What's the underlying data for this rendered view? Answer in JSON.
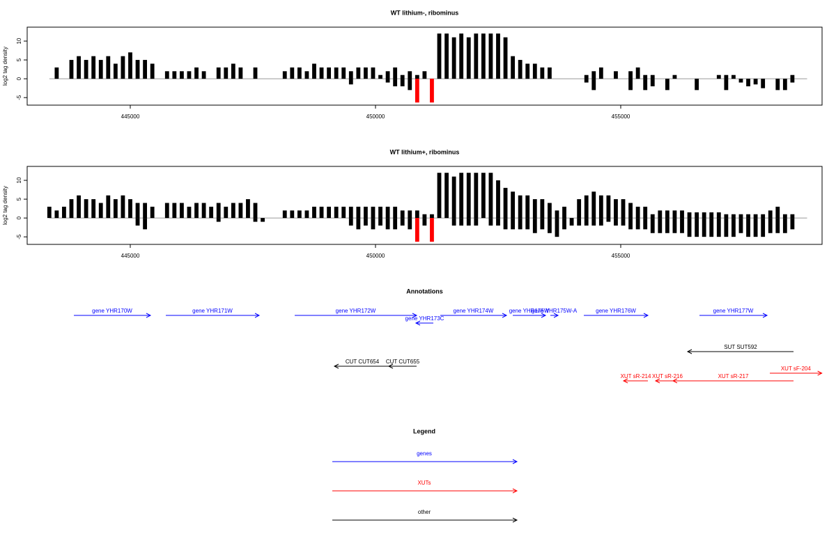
{
  "chart_data": [
    {
      "type": "bar",
      "title": "WT lithium-, ribominus",
      "ylabel": "log2 tag density",
      "xlim": [
        442898,
        459105
      ],
      "xticks": [
        445000,
        450000,
        455000
      ],
      "ylim": [
        -7,
        13.7
      ],
      "yticks": [
        -5,
        0,
        5,
        10
      ],
      "x": [
        443350,
        443500,
        443650,
        443800,
        443950,
        444100,
        444250,
        444400,
        444550,
        444700,
        444850,
        445000,
        445150,
        445300,
        445450,
        445600,
        445750,
        445900,
        446050,
        446200,
        446350,
        446500,
        446650,
        446800,
        446950,
        447100,
        447250,
        447400,
        447550,
        447700,
        447850,
        448000,
        448150,
        448300,
        448450,
        448600,
        448750,
        448900,
        449050,
        449200,
        449350,
        449500,
        449650,
        449800,
        449950,
        450100,
        450250,
        450400,
        450550,
        450700,
        450850,
        451000,
        451150,
        451300,
        451450,
        451600,
        451750,
        451900,
        452050,
        452200,
        452350,
        452500,
        452650,
        452800,
        452950,
        453100,
        453250,
        453400,
        453550,
        453700,
        453850,
        454000,
        454150,
        454300,
        454450,
        454600,
        454750,
        454900,
        455050,
        455200,
        455350,
        455500,
        455650,
        455800,
        455950,
        456100,
        456250,
        456400,
        456550,
        456700,
        456850,
        457000,
        457150,
        457300,
        457450,
        457600,
        457750,
        457900,
        458050,
        458200,
        458350,
        458500,
        458650,
        458800
      ],
      "series": [
        {
          "color": "#000000",
          "values": [
            null,
            3,
            null,
            5,
            6,
            5,
            6,
            5,
            6,
            4,
            6,
            7,
            5,
            5,
            4,
            null,
            2,
            2,
            2,
            2,
            3,
            2,
            null,
            3,
            3,
            4,
            3,
            null,
            3,
            null,
            null,
            null,
            2,
            3,
            3,
            2,
            4,
            3,
            3,
            3,
            3,
            2,
            3,
            3,
            3,
            1,
            2,
            3,
            1,
            2,
            1,
            2,
            null,
            12,
            12,
            11,
            12,
            11,
            12,
            12,
            12,
            12,
            11,
            6,
            5,
            4,
            4,
            3,
            3,
            null,
            null,
            null,
            null,
            1,
            2,
            3,
            null,
            2,
            null,
            2,
            3,
            1,
            1,
            null,
            null,
            1,
            null,
            null,
            null,
            null,
            null,
            1,
            1,
            1,
            null,
            null,
            null,
            null,
            null,
            null,
            null,
            1,
            null,
            null
          ]
        },
        {
          "color": "#000000",
          "values": [
            null,
            null,
            null,
            null,
            null,
            null,
            null,
            null,
            null,
            null,
            null,
            null,
            null,
            null,
            null,
            null,
            null,
            null,
            null,
            null,
            null,
            null,
            null,
            null,
            null,
            null,
            null,
            null,
            null,
            null,
            null,
            null,
            null,
            null,
            null,
            null,
            null,
            null,
            null,
            null,
            null,
            -1.5,
            null,
            null,
            null,
            null,
            -1,
            -2,
            -2,
            -3,
            null,
            null,
            null,
            null,
            null,
            null,
            null,
            null,
            null,
            null,
            null,
            null,
            null,
            null,
            null,
            null,
            null,
            null,
            null,
            null,
            null,
            null,
            null,
            -1,
            -3,
            null,
            null,
            null,
            null,
            -3,
            null,
            -3,
            -2,
            null,
            -3,
            null,
            null,
            null,
            -3,
            null,
            null,
            null,
            -3,
            null,
            -1,
            -2,
            -1.5,
            -2.5,
            null,
            -3,
            -3,
            -1,
            null,
            null
          ]
        },
        {
          "color": "#ff0000",
          "values": [
            null,
            null,
            null,
            null,
            null,
            null,
            null,
            null,
            null,
            null,
            null,
            null,
            null,
            null,
            null,
            null,
            null,
            null,
            null,
            null,
            null,
            null,
            null,
            null,
            null,
            null,
            null,
            null,
            null,
            null,
            null,
            null,
            null,
            null,
            null,
            null,
            null,
            null,
            null,
            null,
            null,
            null,
            null,
            null,
            null,
            null,
            null,
            null,
            null,
            null,
            -6.3,
            null,
            -6.3,
            null,
            null,
            null,
            null,
            null,
            null,
            null,
            null,
            null,
            null,
            null,
            null,
            null,
            null,
            null,
            null,
            null,
            null,
            null,
            null,
            null,
            null,
            null,
            null,
            null,
            null,
            null,
            null,
            null,
            null,
            null,
            null,
            null,
            null,
            null,
            null,
            null,
            null,
            null,
            null,
            null,
            null,
            null,
            null,
            null,
            null,
            null,
            null,
            null,
            null,
            null
          ]
        }
      ]
    },
    {
      "type": "bar",
      "title": "WT lithium+, ribominus",
      "ylabel": "log2 tag density",
      "xlim": [
        442898,
        459105
      ],
      "xticks": [
        445000,
        450000,
        455000
      ],
      "ylim": [
        -7,
        13.7
      ],
      "yticks": [
        -5,
        0,
        5,
        10
      ],
      "x": [
        443350,
        443500,
        443650,
        443800,
        443950,
        444100,
        444250,
        444400,
        444550,
        444700,
        444850,
        445000,
        445150,
        445300,
        445450,
        445600,
        445750,
        445900,
        446050,
        446200,
        446350,
        446500,
        446650,
        446800,
        446950,
        447100,
        447250,
        447400,
        447550,
        447700,
        447850,
        448000,
        448150,
        448300,
        448450,
        448600,
        448750,
        448900,
        449050,
        449200,
        449350,
        449500,
        449650,
        449800,
        449950,
        450100,
        450250,
        450400,
        450550,
        450700,
        450850,
        451000,
        451150,
        451300,
        451450,
        451600,
        451750,
        451900,
        452050,
        452200,
        452350,
        452500,
        452650,
        452800,
        452950,
        453100,
        453250,
        453400,
        453550,
        453700,
        453850,
        454000,
        454150,
        454300,
        454450,
        454600,
        454750,
        454900,
        455050,
        455200,
        455350,
        455500,
        455650,
        455800,
        455950,
        456100,
        456250,
        456400,
        456550,
        456700,
        456850,
        457000,
        457150,
        457300,
        457450,
        457600,
        457750,
        457900,
        458050,
        458200,
        458350,
        458500,
        458650,
        458800
      ],
      "series": [
        {
          "color": "#000000",
          "values": [
            3,
            2,
            3,
            5,
            6,
            5,
            5,
            4,
            6,
            5,
            6,
            5,
            4,
            4,
            3,
            null,
            4,
            4,
            4,
            3,
            4,
            4,
            3,
            4,
            3,
            4,
            4,
            5,
            4,
            null,
            null,
            null,
            2,
            2,
            2,
            2,
            3,
            3,
            3,
            3,
            3,
            3,
            3,
            3,
            3,
            3,
            3,
            3,
            2,
            2,
            2,
            1,
            1,
            12,
            12,
            11,
            12,
            12,
            12,
            12,
            12,
            10,
            8,
            7,
            6,
            6,
            5,
            5,
            4,
            2,
            3,
            null,
            5,
            6,
            7,
            6,
            6,
            5,
            5,
            4,
            3,
            3,
            1,
            2,
            2,
            2,
            2,
            1.5,
            1.5,
            1.5,
            1.5,
            1.5,
            1,
            1,
            1,
            1,
            1,
            1,
            2,
            3,
            1,
            1,
            null,
            null
          ]
        },
        {
          "color": "#000000",
          "values": [
            null,
            null,
            null,
            null,
            null,
            null,
            null,
            null,
            null,
            null,
            null,
            null,
            -2,
            -3,
            null,
            null,
            null,
            null,
            null,
            null,
            null,
            null,
            null,
            -1,
            null,
            null,
            null,
            null,
            -1,
            -1,
            null,
            null,
            null,
            null,
            null,
            null,
            null,
            null,
            null,
            null,
            null,
            -2,
            -3,
            -2,
            -3,
            -2,
            -3,
            -3,
            -2,
            -3,
            null,
            -2,
            null,
            null,
            null,
            -2,
            -2,
            -2,
            -2,
            null,
            -2,
            -2,
            -3,
            -3,
            -3,
            -3,
            -4,
            -3,
            -4,
            -5,
            -3,
            -2,
            -2,
            -2,
            -2,
            -2,
            -1,
            -2,
            -2,
            -3,
            -3,
            -3,
            -4,
            -4,
            -4,
            -4,
            -4,
            -5,
            -5,
            -5,
            -5,
            -5,
            -5,
            -5,
            -4,
            -5,
            -5,
            -5,
            -4,
            -4,
            -4,
            -3,
            null,
            null
          ]
        },
        {
          "color": "#ff0000",
          "values": [
            null,
            null,
            null,
            null,
            null,
            null,
            null,
            null,
            null,
            null,
            null,
            null,
            null,
            null,
            null,
            null,
            null,
            null,
            null,
            null,
            null,
            null,
            null,
            null,
            null,
            null,
            null,
            null,
            null,
            null,
            null,
            null,
            null,
            null,
            null,
            null,
            null,
            null,
            null,
            null,
            null,
            null,
            null,
            null,
            null,
            null,
            null,
            null,
            null,
            null,
            -6.3,
            null,
            -6.3,
            null,
            null,
            null,
            null,
            null,
            null,
            null,
            null,
            null,
            null,
            null,
            null,
            null,
            null,
            null,
            null,
            null,
            null,
            null,
            null,
            null,
            null,
            null,
            null,
            null,
            null,
            null,
            null,
            null,
            null,
            null,
            null,
            null,
            null,
            null,
            null,
            null,
            null,
            null,
            null,
            null,
            null,
            null,
            null,
            null,
            null,
            null,
            null,
            null,
            null,
            null
          ]
        }
      ]
    },
    {
      "type": "annotation",
      "title": "Annotations",
      "xlim": [
        442898,
        459105
      ],
      "features": [
        {
          "label": "gene YHR170W",
          "start": 443850,
          "end": 445412,
          "strand": "+",
          "class": "genes"
        },
        {
          "label": "gene YHR171W",
          "start": 445725,
          "end": 447628,
          "strand": "+",
          "class": "genes"
        },
        {
          "label": "gene YHR172W",
          "start": 448353,
          "end": 450838,
          "strand": "+",
          "class": "genes"
        },
        {
          "label": "gene YHR173C",
          "start": 450824,
          "end": 451179,
          "strand": "-",
          "class": "genes"
        },
        {
          "label": "gene YHR174W",
          "start": 451321,
          "end": 452671,
          "strand": "+",
          "class": "genes"
        },
        {
          "label": "gene YHR175W",
          "start": 452799,
          "end": 453466,
          "strand": "+",
          "class": "genes"
        },
        {
          "label": "gene YHR175W-A",
          "start": 453565,
          "end": 453722,
          "strand": "+",
          "class": "genes"
        },
        {
          "label": "gene YHR176W",
          "start": 454247,
          "end": 455554,
          "strand": "+",
          "class": "genes"
        },
        {
          "label": "gene YHR177W",
          "start": 456605,
          "end": 457983,
          "strand": "+",
          "class": "genes"
        },
        {
          "label": "SUT SUT592",
          "start": 456364,
          "end": 458523,
          "strand": "-",
          "class": "other"
        },
        {
          "label": "CUT CUT654",
          "start": 449162,
          "end": 450299,
          "strand": "-",
          "class": "other"
        },
        {
          "label": "CUT CUT655",
          "start": 450270,
          "end": 450838,
          "strand": "-",
          "class": "other"
        },
        {
          "label": "XUT sR-214",
          "start": 455057,
          "end": 455554,
          "strand": "-",
          "class": "XUTs"
        },
        {
          "label": "XUT sR-216",
          "start": 455710,
          "end": 456193,
          "strand": "-",
          "class": "XUTs"
        },
        {
          "label": "XUT sR-217",
          "start": 456065,
          "end": 458523,
          "strand": "-",
          "class": "XUTs"
        },
        {
          "label": "XUT sF-204",
          "start": 458040,
          "end": 459100,
          "strand": "+",
          "class": "XUTs"
        }
      ]
    },
    {
      "type": "legend",
      "title": "Legend",
      "items": [
        {
          "name": "genes",
          "color": "#0000ff"
        },
        {
          "name": "XUTs",
          "color": "#ff0000"
        },
        {
          "name": "other",
          "color": "#000000"
        }
      ]
    }
  ]
}
